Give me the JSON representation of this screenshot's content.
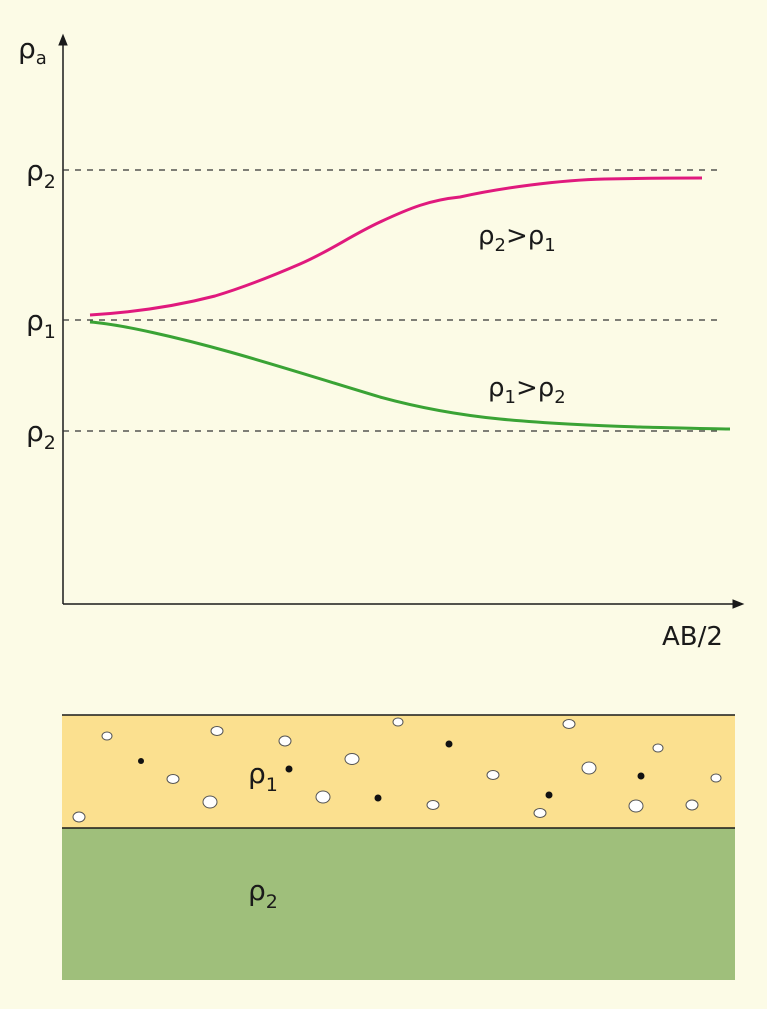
{
  "graph": {
    "y_axis_label": {
      "base": "ρ",
      "sub": "a"
    },
    "x_axis_label": "AB/2",
    "reference_levels": [
      {
        "base": "ρ",
        "sub": "2"
      },
      {
        "base": "ρ",
        "sub": "1"
      },
      {
        "base": "ρ",
        "sub": "2"
      }
    ],
    "curves": [
      {
        "color": "#e0197d",
        "label": {
          "a": "ρ",
          "a_sub": "2",
          "op": ">",
          "b": "ρ",
          "b_sub": "1"
        }
      },
      {
        "color": "#3aa335",
        "label": {
          "a": "ρ",
          "a_sub": "1",
          "op": ">",
          "b": "ρ",
          "b_sub": "2"
        }
      }
    ]
  },
  "layers": {
    "top": {
      "color": "#fbe08f",
      "label": {
        "base": "ρ",
        "sub": "1"
      }
    },
    "bottom": {
      "color": "#9fbf7b",
      "label": {
        "base": "ρ",
        "sub": "2"
      }
    }
  }
}
